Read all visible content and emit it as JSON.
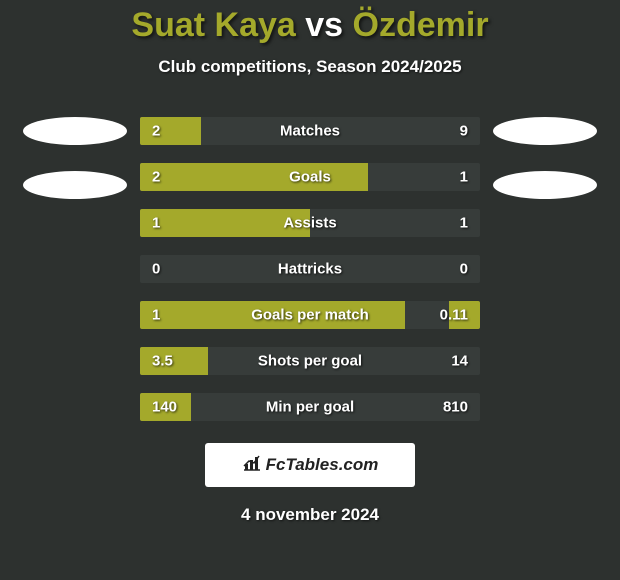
{
  "header": {
    "player_left": "Suat Kaya",
    "vs": "vs",
    "player_right": "Özdemir",
    "subtitle": "Club competitions, Season 2024/2025"
  },
  "colors": {
    "accent": "#a4a92b",
    "background": "#2d312f",
    "bar_track": "#373c3a",
    "text": "#ffffff"
  },
  "bars": [
    {
      "label": "Matches",
      "left": "2",
      "right": "9",
      "left_pct": 18,
      "right_pct": 0
    },
    {
      "label": "Goals",
      "left": "2",
      "right": "1",
      "left_pct": 67,
      "right_pct": 0
    },
    {
      "label": "Assists",
      "left": "1",
      "right": "1",
      "left_pct": 50,
      "right_pct": 0
    },
    {
      "label": "Hattricks",
      "left": "0",
      "right": "0",
      "left_pct": 0,
      "right_pct": 0
    },
    {
      "label": "Goals per match",
      "left": "1",
      "right": "0.11",
      "left_pct": 78,
      "right_pct": 9
    },
    {
      "label": "Shots per goal",
      "left": "3.5",
      "right": "14",
      "left_pct": 20,
      "right_pct": 0
    },
    {
      "label": "Min per goal",
      "left": "140",
      "right": "810",
      "left_pct": 15,
      "right_pct": 0
    }
  ],
  "footer": {
    "logo_text": "FcTables.com",
    "date": "4 november 2024"
  }
}
